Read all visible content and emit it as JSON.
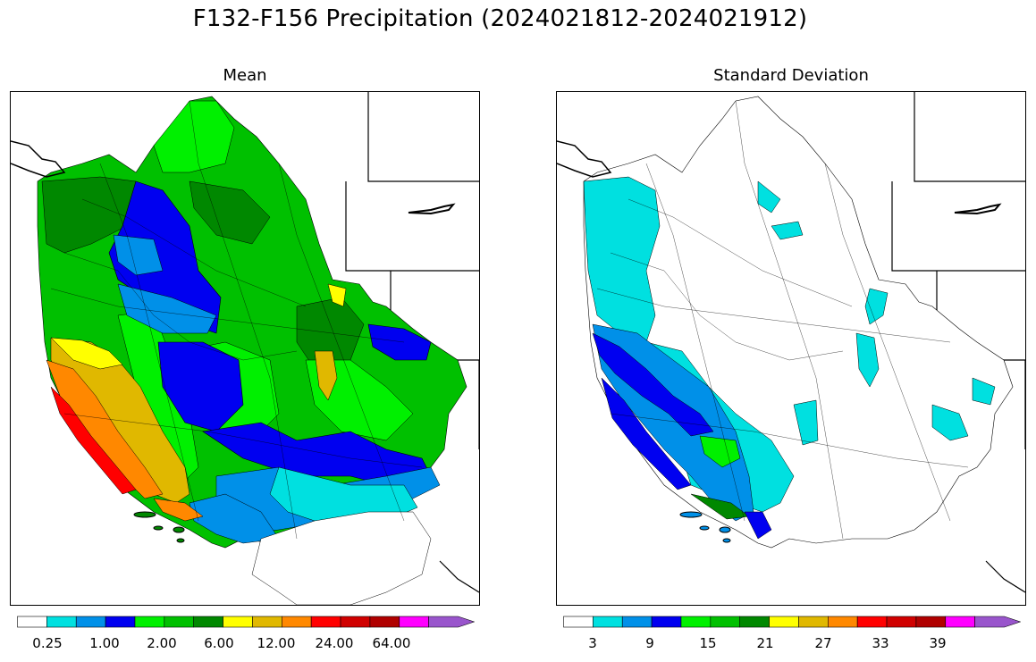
{
  "figure": {
    "title": "F132-F156 Precipitation (2024021812-2024021912)"
  },
  "panels": [
    {
      "title": "Mean",
      "colorbar": {
        "tick_labels": [
          "0.25",
          "1.00",
          "2.00",
          "6.00",
          "12.00",
          "24.00",
          "64.00"
        ],
        "colors": [
          "#ffffff",
          "#00e0e0",
          "#0090e8",
          "#0000f0",
          "#00f000",
          "#00c000",
          "#008800",
          "#ffff00",
          "#e0b800",
          "#ff8800",
          "#ff0000",
          "#d00000",
          "#b00000",
          "#ff00ff",
          "#9955cc"
        ],
        "extend": "max"
      }
    },
    {
      "title": "Standard Deviation",
      "colorbar": {
        "tick_labels": [
          "3",
          "9",
          "15",
          "21",
          "27",
          "33",
          "39"
        ],
        "colors": [
          "#ffffff",
          "#00e0e0",
          "#0090e8",
          "#0000f0",
          "#00f000",
          "#00c000",
          "#008800",
          "#ffff00",
          "#e0b800",
          "#ff8800",
          "#ff0000",
          "#d00000",
          "#b00000",
          "#ff00ff",
          "#9955cc"
        ],
        "extend": "max"
      }
    }
  ]
}
